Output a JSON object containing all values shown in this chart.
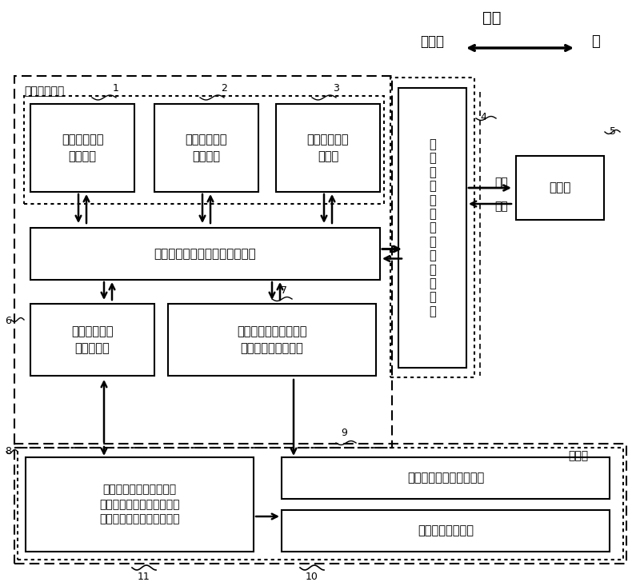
{
  "fig_width": 8.0,
  "fig_height": 7.28,
  "bg_color": "#ffffff",
  "title_top": "交互",
  "label_computer": "计算机",
  "label_person": "人",
  "main_module_label": "主要程序模块",
  "database_label": "数据库",
  "box1_text": "基本出行信息\n生成模块",
  "box2_text": "其它辅助信息\n生成模块",
  "box3_text": "驾驶员驾车任\n务模块",
  "center_box_text": "高速道路网宏观交通流仿真模型",
  "box_left_bottom_text": "交通流运行状\n态生成模块",
  "box_right_bottom_text": "动态路网交通状态及路\n径导行信息生成模块",
  "virtual_box_text": "虚\n拟\n出\n行\n情\n境\n（\n计\n算\n机\n界\n面\n）",
  "driver_box_text": "驾驶员",
  "db_left_text": "虚拟出行情境初始化数据\n（路网数据、交通数据、交\n通模型参数、交通事件等）",
  "db_right_top_text": "驾驶员动态响应行为数据",
  "db_right_bottom_text": "其他出行相关信息",
  "label_1": "1",
  "label_2": "2",
  "label_3": "3",
  "label_4": "4",
  "label_5": "5",
  "label_6": "6",
  "label_7": "7",
  "label_8": "8",
  "label_9": "9",
  "label_10": "10",
  "label_11": "11",
  "stimulus_text": "刺激",
  "response_text": "响应"
}
